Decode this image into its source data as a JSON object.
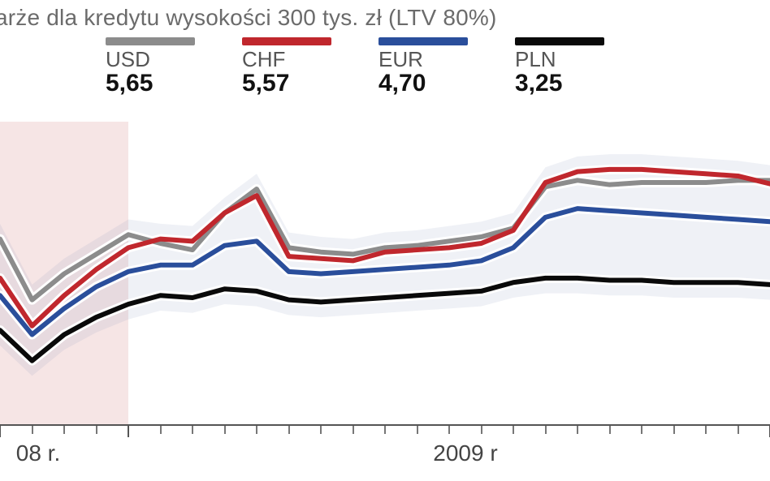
{
  "title": "arże dla kredytu wysokości 300 tys. zł (LTV 80%)",
  "legend": [
    {
      "label": "USD",
      "value": "5,65",
      "color": "#8c8c8c"
    },
    {
      "label": "CHF",
      "value": "5,57",
      "color": "#c0272d"
    },
    {
      "label": "EUR",
      "value": "4,70",
      "color": "#2a4e9b"
    },
    {
      "label": "PLN",
      "value": "3,25",
      "color": "#0a0a0a"
    }
  ],
  "chart": {
    "type": "line",
    "x_range": [
      0,
      24
    ],
    "y_range": [
      0,
      7
    ],
    "background_color": "#ffffff",
    "band_shade_color": "rgba(120,140,180,0.12)",
    "left_shade_color": "rgba(220,150,150,0.25)",
    "halo_color": "#ffffff",
    "halo_width": 12,
    "line_width": 6,
    "x_labels": [
      {
        "x": 0.5,
        "text": "08 r."
      },
      {
        "x": 13.5,
        "text": "2009 r"
      }
    ],
    "x_ticks_major": [
      0,
      4,
      24
    ],
    "x_ticks_minor": [
      1,
      2,
      3,
      5,
      6,
      7,
      8,
      9,
      10,
      11,
      12,
      13,
      14,
      15,
      16,
      17,
      18,
      19,
      20,
      21,
      22,
      23
    ],
    "series": [
      {
        "name": "USD",
        "color": "#8c8c8c",
        "y": [
          4.3,
          2.9,
          3.5,
          3.95,
          4.4,
          4.2,
          4.05,
          4.9,
          5.45,
          4.1,
          4.0,
          3.95,
          4.1,
          4.15,
          4.25,
          4.35,
          4.55,
          5.5,
          5.65,
          5.55,
          5.6,
          5.6,
          5.6,
          5.65,
          5.65
        ]
      },
      {
        "name": "CHF",
        "color": "#c0272d",
        "y": [
          3.4,
          2.3,
          3.0,
          3.6,
          4.1,
          4.3,
          4.25,
          4.9,
          5.3,
          3.9,
          3.85,
          3.8,
          4.0,
          4.05,
          4.1,
          4.2,
          4.5,
          5.6,
          5.85,
          5.9,
          5.9,
          5.85,
          5.8,
          5.75,
          5.57
        ]
      },
      {
        "name": "EUR",
        "color": "#2a4e9b",
        "y": [
          3.0,
          2.1,
          2.7,
          3.2,
          3.55,
          3.7,
          3.7,
          4.15,
          4.25,
          3.55,
          3.5,
          3.55,
          3.6,
          3.65,
          3.7,
          3.8,
          4.1,
          4.8,
          5.0,
          4.95,
          4.9,
          4.85,
          4.8,
          4.75,
          4.7
        ]
      },
      {
        "name": "PLN",
        "color": "#0a0a0a",
        "y": [
          2.2,
          1.5,
          2.1,
          2.5,
          2.8,
          3.0,
          2.95,
          3.15,
          3.1,
          2.9,
          2.85,
          2.9,
          2.95,
          3.0,
          3.05,
          3.1,
          3.3,
          3.4,
          3.4,
          3.35,
          3.35,
          3.3,
          3.3,
          3.3,
          3.25
        ]
      }
    ]
  }
}
